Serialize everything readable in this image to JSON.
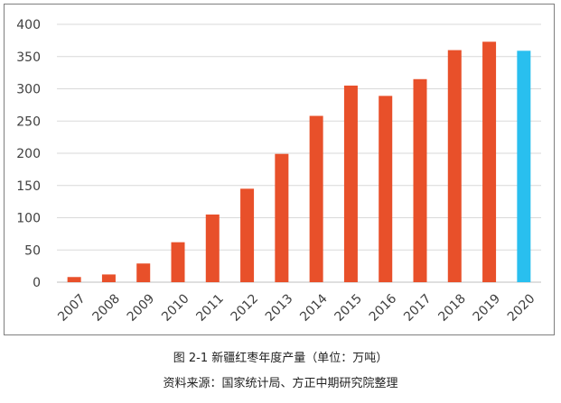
{
  "chart_data": {
    "type": "bar",
    "categories": [
      "2007",
      "2008",
      "2009",
      "2010",
      "2011",
      "2012",
      "2013",
      "2014",
      "2015",
      "2016",
      "2017",
      "2018",
      "2019",
      "2020"
    ],
    "values": [
      8,
      12,
      29,
      62,
      105,
      145,
      199,
      258,
      305,
      289,
      315,
      360,
      373,
      359
    ],
    "ylim": [
      0,
      400
    ],
    "yticks": [
      0,
      50,
      100,
      150,
      200,
      250,
      300,
      350,
      400
    ],
    "grid": true,
    "colors": {
      "bar": "#E8502A",
      "highlight": "#29BFEF",
      "grid": "#d9d9d9",
      "axis_text": "#404040"
    },
    "highlight_category": "2020"
  },
  "captions": {
    "figure": "图 2-1 新疆红枣年度产量（单位：万吨）",
    "source": "资料来源：国家统计局、方正中期研究院整理"
  }
}
